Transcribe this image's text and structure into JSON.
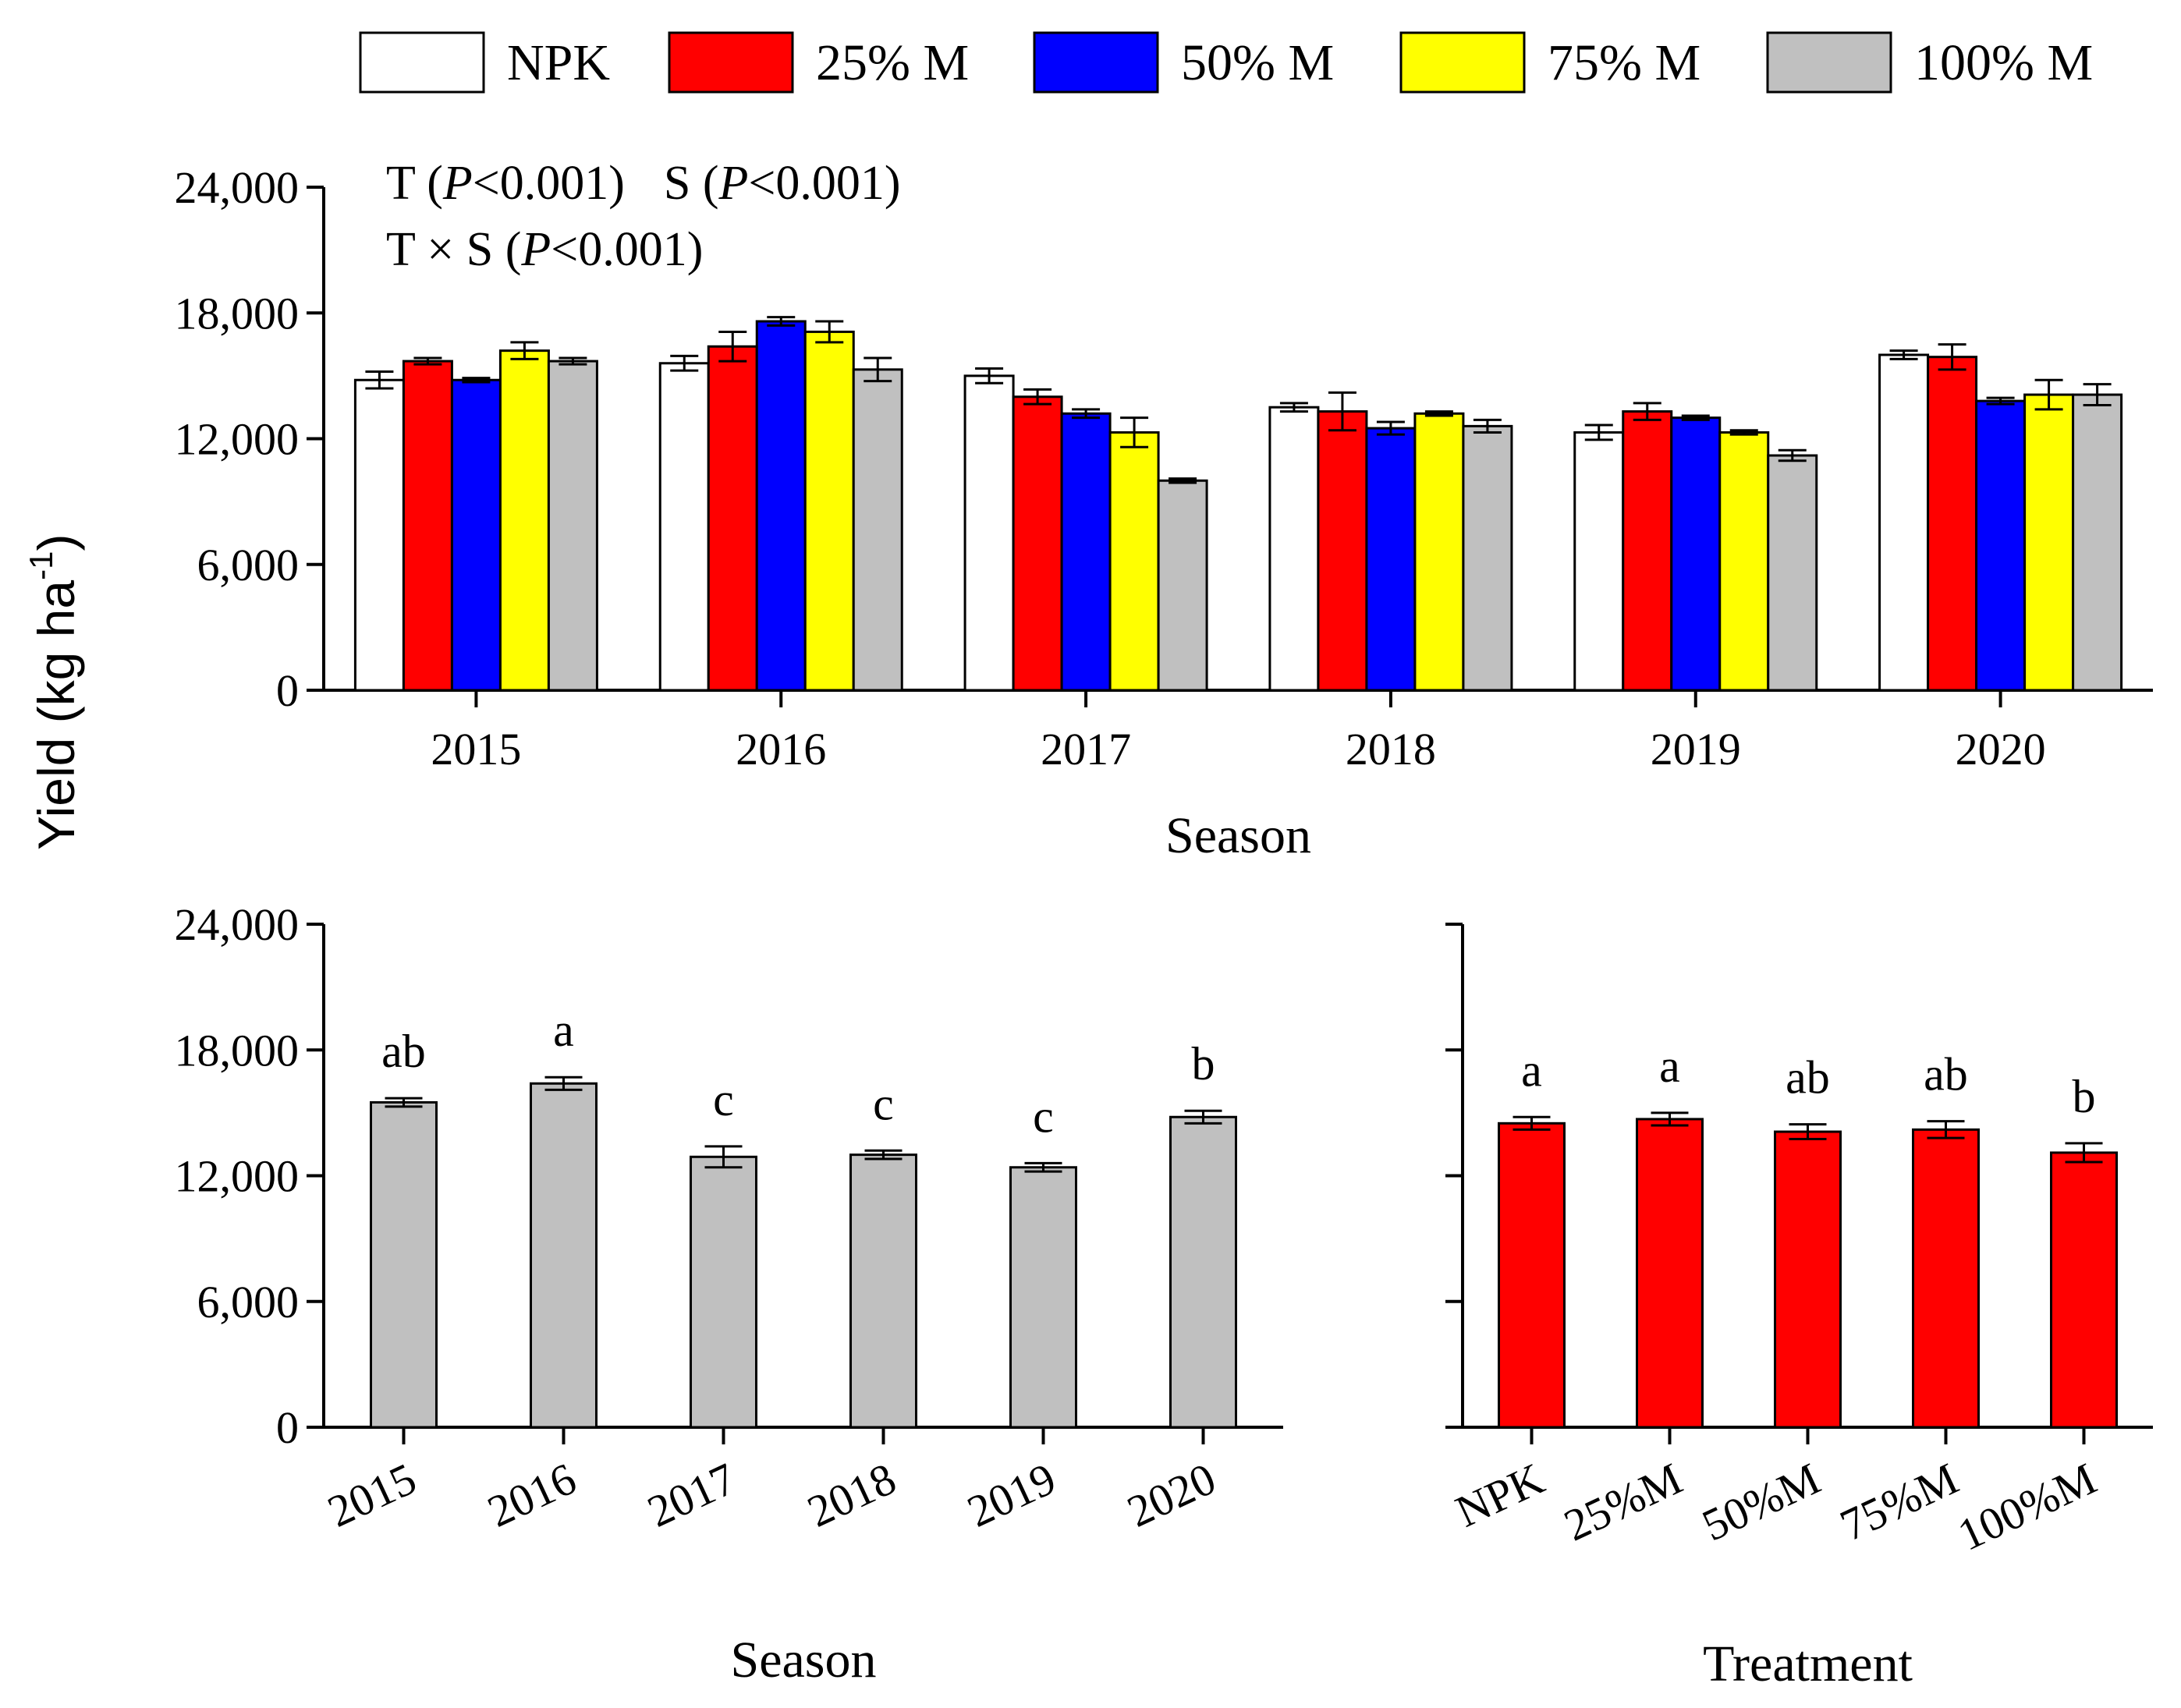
{
  "y_axis_title": "Yield (kg ha",
  "y_axis_title_sup": "-1",
  "y_axis_title_close": ")",
  "legend": [
    {
      "name": "NPK",
      "color": "#ffffff"
    },
    {
      "name": "25% M",
      "color": "#ff0000"
    },
    {
      "name": "50% M",
      "color": "#0000ff"
    },
    {
      "name": "75% M",
      "color": "#ffff00"
    },
    {
      "name": "100% M",
      "color": "#c0c0c0"
    }
  ],
  "stats": {
    "line1_t": "T (",
    "line1_p": "P",
    "line1_rest": "<0.001)",
    "line1_s": "S (",
    "line1_p2": "P",
    "line1_rest2": "<0.001)",
    "line2_t": "T × S (",
    "line2_p": "P",
    "line2_rest": "<0.001)"
  },
  "chart_data": [
    {
      "type": "bar",
      "title": "",
      "xlabel": "Season",
      "ylabel": "Yield (kg ha-1)",
      "ylim": [
        0,
        24000
      ],
      "yticks": [
        "0",
        "6,000",
        "12,000",
        "18,000",
        "24,000"
      ],
      "categories": [
        "2015",
        "2016",
        "2017",
        "2018",
        "2019",
        "2020"
      ],
      "series": [
        {
          "name": "NPK",
          "color": "#ffffff",
          "values": [
            14800,
            15600,
            15000,
            13500,
            12300,
            16000
          ],
          "errors": [
            400,
            350,
            350,
            200,
            350,
            200
          ]
        },
        {
          "name": "25% M",
          "color": "#ff0000",
          "values": [
            15700,
            16400,
            14000,
            13300,
            13300,
            15900
          ],
          "errors": [
            150,
            700,
            350,
            900,
            400,
            600
          ]
        },
        {
          "name": "50% M",
          "color": "#0000ff",
          "values": [
            14800,
            17600,
            13200,
            12500,
            13000,
            13800
          ],
          "errors": [
            100,
            200,
            200,
            300,
            100,
            150
          ]
        },
        {
          "name": "75% M",
          "color": "#ffff00",
          "values": [
            16200,
            17100,
            12300,
            13200,
            12300,
            14100
          ],
          "errors": [
            400,
            500,
            700,
            100,
            100,
            700
          ]
        },
        {
          "name": "100% M",
          "color": "#c0c0c0",
          "values": [
            15700,
            15300,
            10000,
            12600,
            11200,
            14100
          ],
          "errors": [
            150,
            550,
            100,
            300,
            250,
            500
          ]
        }
      ]
    },
    {
      "type": "bar",
      "title": "",
      "xlabel": "Season",
      "ylabel": "Yield (kg ha-1)",
      "ylim": [
        0,
        24000
      ],
      "yticks": [
        "0",
        "6,000",
        "12,000",
        "18,000",
        "24,000"
      ],
      "categories": [
        "2015",
        "2016",
        "2017",
        "2018",
        "2019",
        "2020"
      ],
      "values": [
        15500,
        16400,
        12900,
        13000,
        12400,
        14800
      ],
      "errors": [
        200,
        300,
        500,
        200,
        200,
        300
      ],
      "letters": [
        "ab",
        "a",
        "c",
        "c",
        "c",
        "b"
      ],
      "color": "#c0c0c0"
    },
    {
      "type": "bar",
      "title": "",
      "xlabel": "Treatment",
      "ylabel": "",
      "ylim": [
        0,
        24000
      ],
      "categories": [
        "NPK",
        "25%M",
        "50%M",
        "75%M",
        "100%M"
      ],
      "values": [
        14500,
        14700,
        14100,
        14200,
        13100
      ],
      "errors": [
        300,
        300,
        350,
        400,
        450
      ],
      "letters": [
        "a",
        "a",
        "ab",
        "ab",
        "b"
      ],
      "color": "#ff0000"
    }
  ]
}
